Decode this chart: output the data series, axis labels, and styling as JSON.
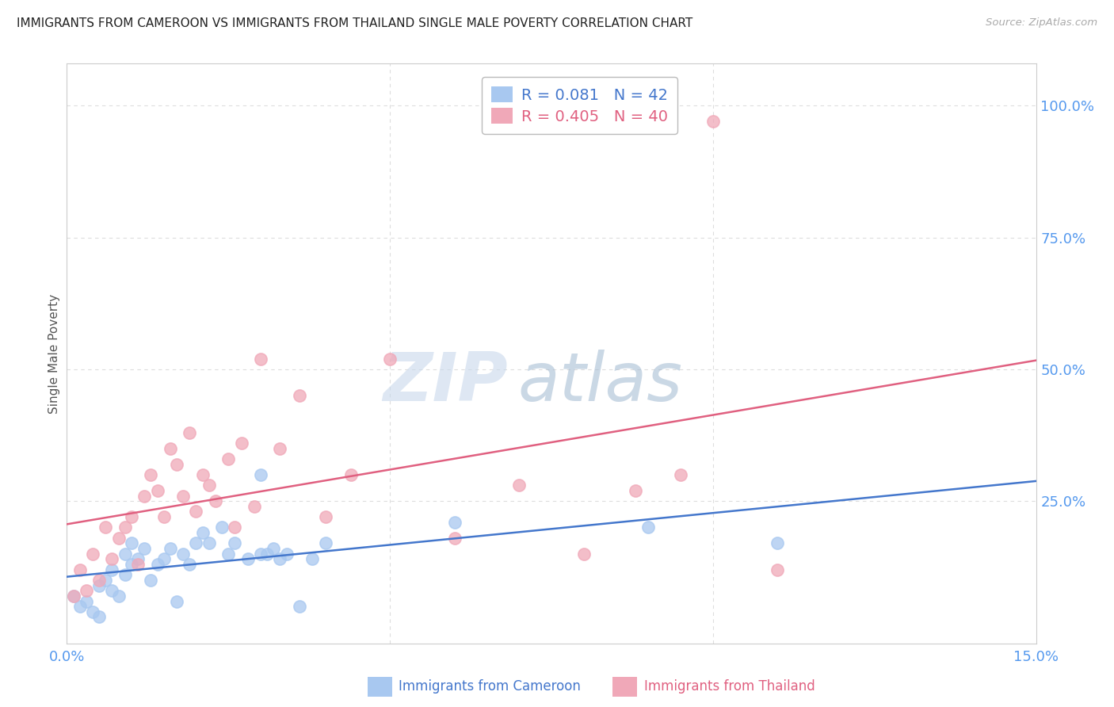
{
  "title": "IMMIGRANTS FROM CAMEROON VS IMMIGRANTS FROM THAILAND SINGLE MALE POVERTY CORRELATION CHART",
  "source": "Source: ZipAtlas.com",
  "ylabel": "Single Male Poverty",
  "xlim": [
    0.0,
    0.15
  ],
  "ylim": [
    -0.02,
    1.08
  ],
  "ytick_values": [
    0.25,
    0.5,
    0.75,
    1.0
  ],
  "ytick_labels": [
    "25.0%",
    "50.0%",
    "75.0%",
    "100.0%"
  ],
  "xtick_values": [
    0.0,
    0.05,
    0.1,
    0.15
  ],
  "xtick_labels": [
    "0.0%",
    "",
    "",
    "15.0%"
  ],
  "cameroon_color": "#A8C8F0",
  "cameroon_line_color": "#4477CC",
  "thailand_color": "#F0A8B8",
  "thailand_line_color": "#E06080",
  "axis_tick_color": "#5599EE",
  "cameroon_R": 0.081,
  "cameroon_N": 42,
  "thailand_R": 0.405,
  "thailand_N": 40,
  "cameroon_scatter_x": [
    0.001,
    0.002,
    0.003,
    0.004,
    0.005,
    0.005,
    0.006,
    0.007,
    0.007,
    0.008,
    0.009,
    0.009,
    0.01,
    0.01,
    0.011,
    0.012,
    0.013,
    0.014,
    0.015,
    0.016,
    0.017,
    0.018,
    0.019,
    0.02,
    0.021,
    0.022,
    0.024,
    0.025,
    0.026,
    0.028,
    0.03,
    0.03,
    0.031,
    0.032,
    0.033,
    0.034,
    0.036,
    0.038,
    0.04,
    0.06,
    0.09,
    0.11
  ],
  "cameroon_scatter_y": [
    0.07,
    0.05,
    0.06,
    0.04,
    0.03,
    0.09,
    0.1,
    0.08,
    0.12,
    0.07,
    0.11,
    0.15,
    0.13,
    0.17,
    0.14,
    0.16,
    0.1,
    0.13,
    0.14,
    0.16,
    0.06,
    0.15,
    0.13,
    0.17,
    0.19,
    0.17,
    0.2,
    0.15,
    0.17,
    0.14,
    0.3,
    0.15,
    0.15,
    0.16,
    0.14,
    0.15,
    0.05,
    0.14,
    0.17,
    0.21,
    0.2,
    0.17
  ],
  "thailand_scatter_x": [
    0.001,
    0.002,
    0.003,
    0.004,
    0.005,
    0.006,
    0.007,
    0.008,
    0.009,
    0.01,
    0.011,
    0.012,
    0.013,
    0.014,
    0.015,
    0.016,
    0.017,
    0.018,
    0.019,
    0.02,
    0.021,
    0.022,
    0.023,
    0.025,
    0.026,
    0.027,
    0.029,
    0.03,
    0.033,
    0.036,
    0.04,
    0.044,
    0.05,
    0.06,
    0.07,
    0.08,
    0.088,
    0.095,
    0.1,
    0.11
  ],
  "thailand_scatter_y": [
    0.07,
    0.12,
    0.08,
    0.15,
    0.1,
    0.2,
    0.14,
    0.18,
    0.2,
    0.22,
    0.13,
    0.26,
    0.3,
    0.27,
    0.22,
    0.35,
    0.32,
    0.26,
    0.38,
    0.23,
    0.3,
    0.28,
    0.25,
    0.33,
    0.2,
    0.36,
    0.24,
    0.52,
    0.35,
    0.45,
    0.22,
    0.3,
    0.52,
    0.18,
    0.28,
    0.15,
    0.27,
    0.3,
    0.97,
    0.12
  ],
  "watermark_zip": "ZIP",
  "watermark_atlas": "atlas",
  "grid_color": "#DDDDDD",
  "background_color": "#FFFFFF",
  "title_color": "#222222",
  "source_color": "#AAAAAA",
  "ylabel_color": "#555555"
}
